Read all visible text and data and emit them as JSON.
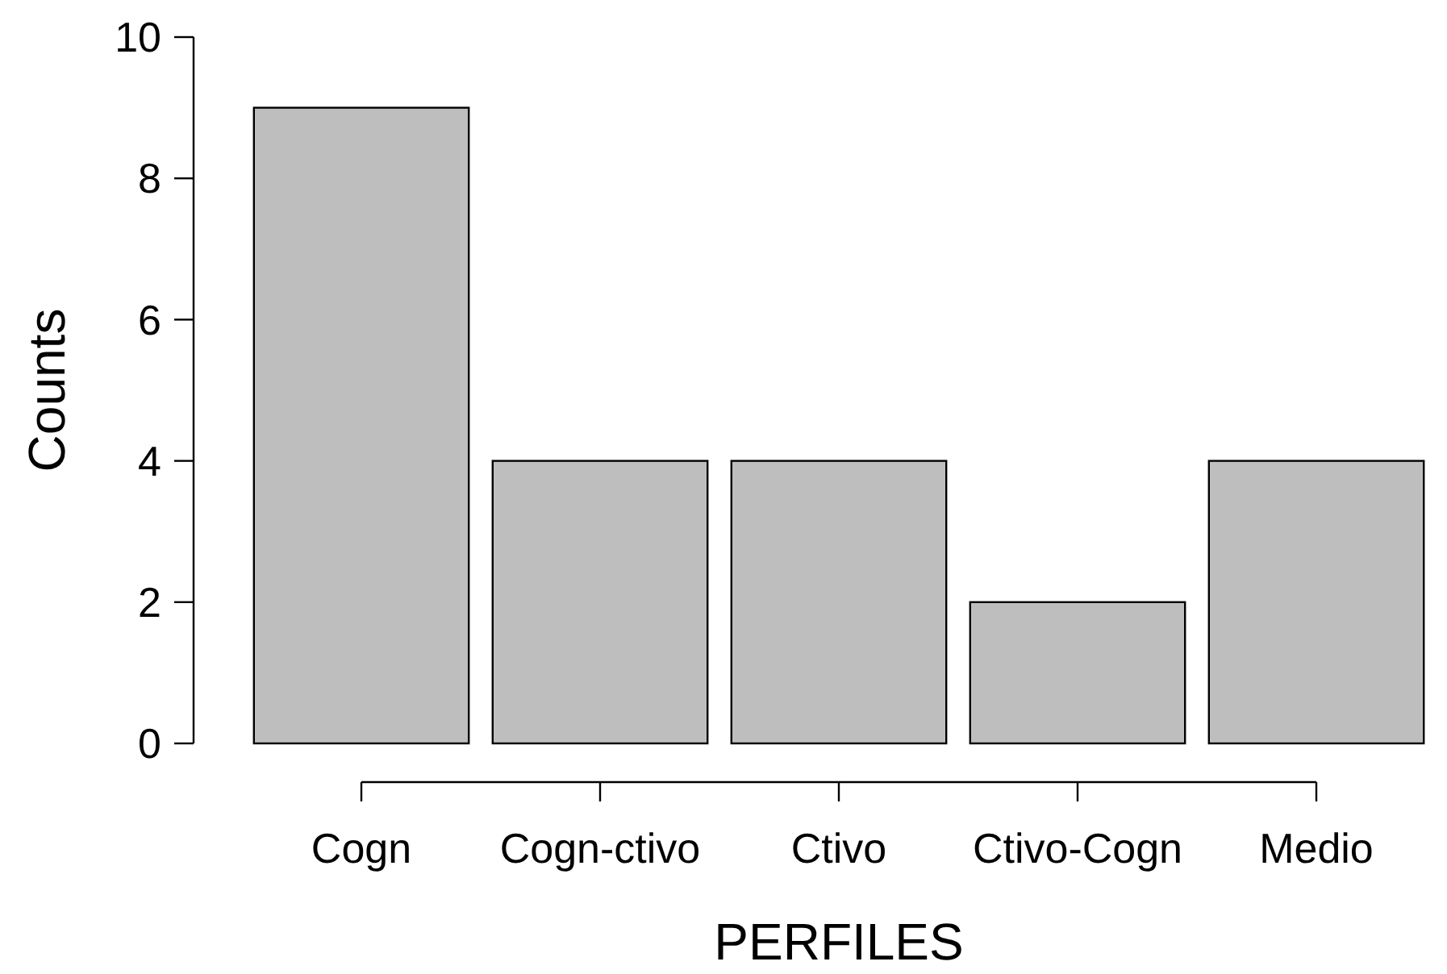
{
  "chart_data": {
    "type": "bar",
    "xlabel": "PERFILES",
    "ylabel": "Counts",
    "categories": [
      "Cogn",
      "Cogn-ctivo",
      "Ctivo",
      "Ctivo-Cogn",
      "Medio"
    ],
    "values": [
      9,
      4,
      4,
      2,
      4
    ],
    "color": "#bebebe",
    "ylim": [
      0,
      10
    ],
    "yticks": [
      0,
      2,
      4,
      6,
      8,
      10
    ]
  }
}
